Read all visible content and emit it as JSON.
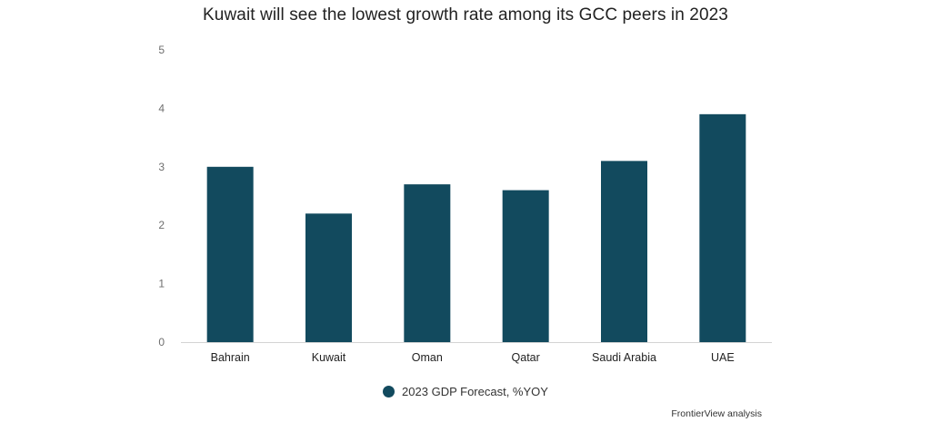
{
  "chart_data": {
    "type": "bar",
    "title": "Kuwait will see the lowest growth rate among its GCC peers in 2023",
    "categories": [
      "Bahrain",
      "Kuwait",
      "Oman",
      "Qatar",
      "Saudi Arabia",
      "UAE"
    ],
    "series": [
      {
        "name": "2023 GDP Forecast, %YOY",
        "values": [
          3.0,
          2.2,
          2.7,
          2.6,
          3.1,
          3.9
        ],
        "color": "#124a5e"
      }
    ],
    "ylim": [
      0,
      5
    ],
    "yticks": [
      "0",
      "1",
      "2",
      "3",
      "4",
      "5"
    ],
    "xlabel": "",
    "ylabel": "",
    "grid": false,
    "legend_position": "bottom",
    "source": "FrontierView analysis"
  }
}
